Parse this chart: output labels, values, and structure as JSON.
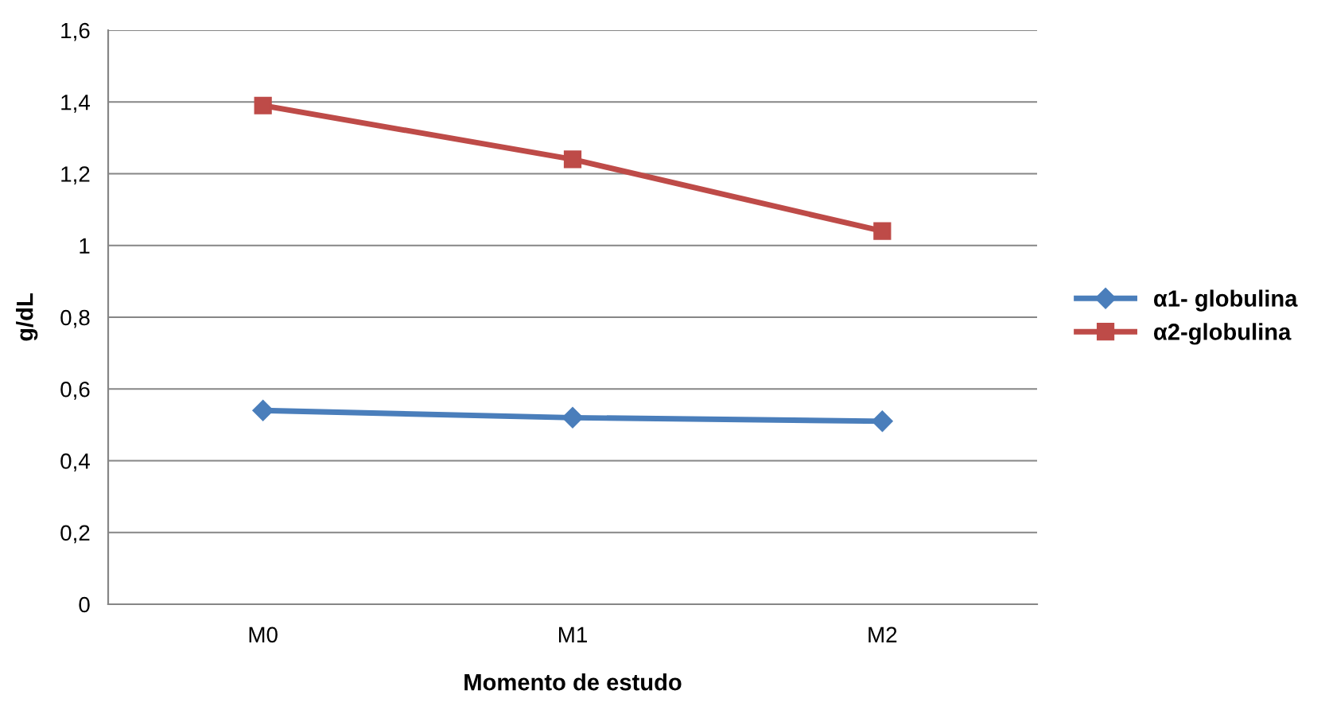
{
  "chart_data": {
    "type": "line",
    "xlabel": "Momento de estudo",
    "ylabel": "g/dL",
    "categories": [
      "M0",
      "M1",
      "M2"
    ],
    "series": [
      {
        "name": "α1- globulina",
        "color": "#4a7ebb",
        "marker": "diamond",
        "values": [
          0.54,
          0.52,
          0.51
        ]
      },
      {
        "name": "α2-globulina",
        "color": "#be4b48",
        "marker": "square",
        "values": [
          1.39,
          1.24,
          1.04
        ]
      }
    ],
    "ylim": [
      0,
      1.6
    ],
    "yticks": [
      0,
      {
        "value": 0.2,
        "label": "0,2"
      },
      {
        "value": 0.4,
        "label": "0,4"
      },
      {
        "value": 0.6,
        "label": "0,6"
      },
      {
        "value": 0.8,
        "label": "0,8"
      },
      1,
      {
        "value": 1.2,
        "label": "1,2"
      },
      {
        "value": 1.4,
        "label": "1,4"
      },
      {
        "value": 1.6,
        "label": "1,6"
      }
    ],
    "grid": "y",
    "legend": "right",
    "line_style": "solid"
  }
}
